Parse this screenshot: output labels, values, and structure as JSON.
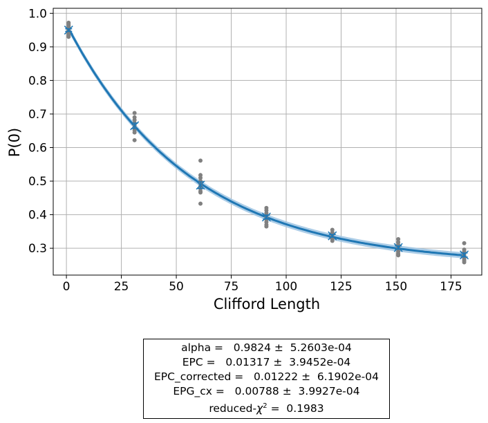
{
  "chart_data": {
    "type": "scatter",
    "xlabel": "Clifford Length",
    "ylabel": "P(0)",
    "xlim": [
      -6,
      189
    ],
    "ylim": [
      0.22,
      1.015
    ],
    "grid": true,
    "xticks": [
      0,
      25,
      50,
      75,
      100,
      125,
      150,
      175
    ],
    "yticks": [
      0.3,
      0.4,
      0.5,
      0.6,
      0.7,
      0.8,
      0.9,
      1.0
    ],
    "xtick_labels": [
      "0",
      "25",
      "50",
      "75",
      "100",
      "125",
      "150",
      "175"
    ],
    "ytick_labels": [
      "0.3",
      "0.4",
      "0.5",
      "0.6",
      "0.7",
      "0.8",
      "0.9",
      "1.0"
    ],
    "colors": {
      "fit": "#1f77b4",
      "band": "#9ec4e3",
      "points": "#808080",
      "grid": "#b0b0b0"
    },
    "fit_model": {
      "A": 0.7175,
      "alpha": 0.9824,
      "B": 0.25
    },
    "points": [
      {
        "x": 1,
        "y": 0.972
      },
      {
        "x": 1,
        "y": 0.968
      },
      {
        "x": 1,
        "y": 0.963
      },
      {
        "x": 1,
        "y": 0.958
      },
      {
        "x": 1,
        "y": 0.953
      },
      {
        "x": 1,
        "y": 0.948
      },
      {
        "x": 1,
        "y": 0.943
      },
      {
        "x": 1,
        "y": 0.938
      },
      {
        "x": 1,
        "y": 0.933
      },
      {
        "x": 1,
        "y": 0.93
      },
      {
        "x": 31,
        "y": 0.703
      },
      {
        "x": 31,
        "y": 0.69
      },
      {
        "x": 31,
        "y": 0.682
      },
      {
        "x": 31,
        "y": 0.673
      },
      {
        "x": 31,
        "y": 0.666
      },
      {
        "x": 31,
        "y": 0.658
      },
      {
        "x": 31,
        "y": 0.652
      },
      {
        "x": 31,
        "y": 0.645
      },
      {
        "x": 31,
        "y": 0.622
      },
      {
        "x": 61,
        "y": 0.561
      },
      {
        "x": 61,
        "y": 0.518
      },
      {
        "x": 61,
        "y": 0.51
      },
      {
        "x": 61,
        "y": 0.5
      },
      {
        "x": 61,
        "y": 0.493
      },
      {
        "x": 61,
        "y": 0.485
      },
      {
        "x": 61,
        "y": 0.478
      },
      {
        "x": 61,
        "y": 0.47
      },
      {
        "x": 61,
        "y": 0.466
      },
      {
        "x": 61,
        "y": 0.433
      },
      {
        "x": 91,
        "y": 0.42
      },
      {
        "x": 91,
        "y": 0.413
      },
      {
        "x": 91,
        "y": 0.405
      },
      {
        "x": 91,
        "y": 0.398
      },
      {
        "x": 91,
        "y": 0.392
      },
      {
        "x": 91,
        "y": 0.386
      },
      {
        "x": 91,
        "y": 0.378
      },
      {
        "x": 91,
        "y": 0.37
      },
      {
        "x": 91,
        "y": 0.365
      },
      {
        "x": 121,
        "y": 0.355
      },
      {
        "x": 121,
        "y": 0.347
      },
      {
        "x": 121,
        "y": 0.341
      },
      {
        "x": 121,
        "y": 0.336
      },
      {
        "x": 121,
        "y": 0.332
      },
      {
        "x": 121,
        "y": 0.327
      },
      {
        "x": 121,
        "y": 0.322
      },
      {
        "x": 151,
        "y": 0.327
      },
      {
        "x": 151,
        "y": 0.318
      },
      {
        "x": 151,
        "y": 0.31
      },
      {
        "x": 151,
        "y": 0.304
      },
      {
        "x": 151,
        "y": 0.298
      },
      {
        "x": 151,
        "y": 0.29
      },
      {
        "x": 151,
        "y": 0.283
      },
      {
        "x": 151,
        "y": 0.279
      },
      {
        "x": 181,
        "y": 0.315
      },
      {
        "x": 181,
        "y": 0.296
      },
      {
        "x": 181,
        "y": 0.29
      },
      {
        "x": 181,
        "y": 0.285
      },
      {
        "x": 181,
        "y": 0.279
      },
      {
        "x": 181,
        "y": 0.273
      },
      {
        "x": 181,
        "y": 0.268
      },
      {
        "x": 181,
        "y": 0.263
      },
      {
        "x": 181,
        "y": 0.258
      }
    ],
    "means": [
      {
        "x": 1,
        "y": 0.95,
        "err": 0.004
      },
      {
        "x": 31,
        "y": 0.665,
        "err": 0.008
      },
      {
        "x": 61,
        "y": 0.488,
        "err": 0.01
      },
      {
        "x": 91,
        "y": 0.393,
        "err": 0.006
      },
      {
        "x": 121,
        "y": 0.337,
        "err": 0.004
      },
      {
        "x": 151,
        "y": 0.302,
        "err": 0.005
      },
      {
        "x": 181,
        "y": 0.28,
        "err": 0.006
      }
    ]
  },
  "fit_box": {
    "alpha": "alpha =   0.9824 ±  5.2603e-04",
    "epc": "EPC =   0.01317 ±  3.9452e-04",
    "epc_corrected": "EPC_corrected =   0.01222 ±  6.1902e-04",
    "epg_cx": "EPG_cx =   0.00788 ±  3.9927e-04",
    "chi_prefix": "reduced-",
    "chi_symbol": "χ",
    "chi_sup": "2",
    "chi_value": " =  0.1983"
  }
}
